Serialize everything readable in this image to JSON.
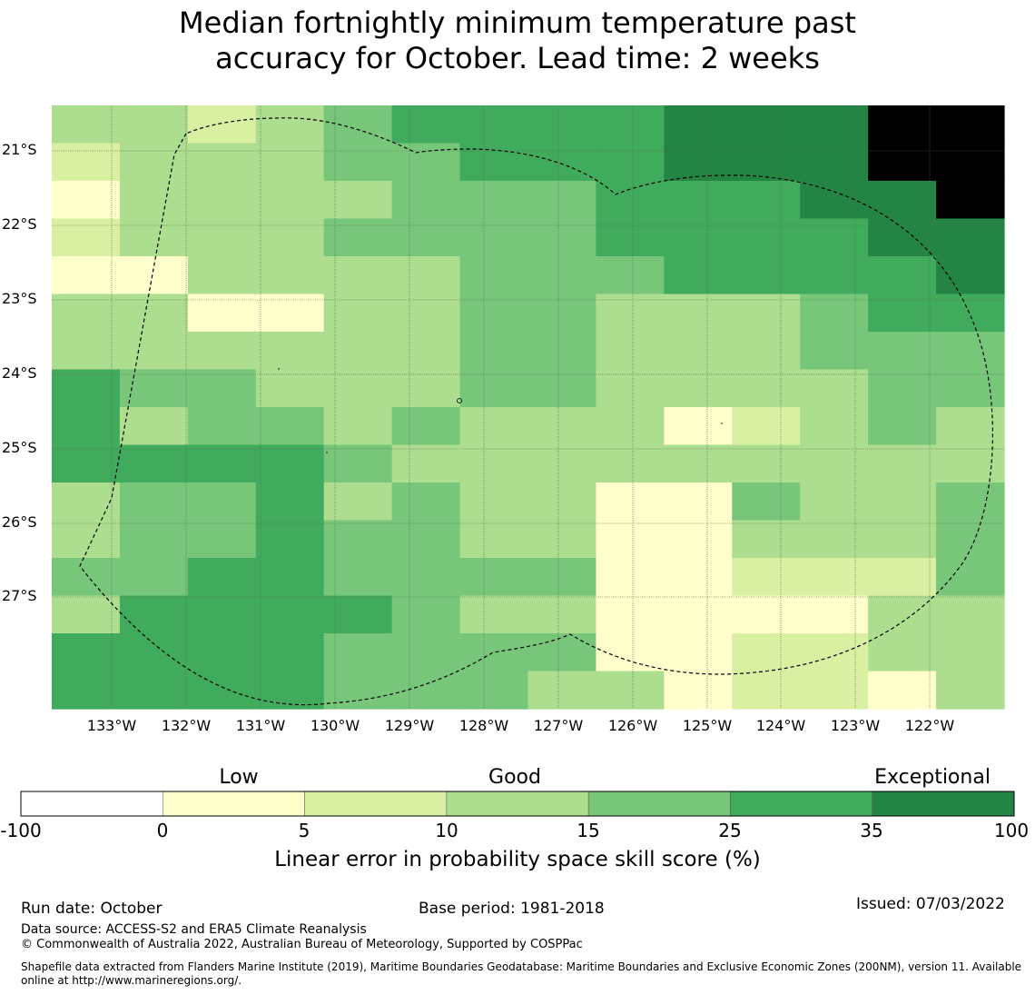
{
  "title": {
    "line1": "Median fortnightly minimum temperature past",
    "line2": "accuracy for October. Lead time: 2 weeks"
  },
  "map": {
    "lat_labels": [
      "21°S",
      "22°S",
      "23°S",
      "24°S",
      "25°S",
      "26°S",
      "27°S"
    ],
    "lon_labels": [
      "133°W",
      "132°W",
      "131°W",
      "130°W",
      "129°W",
      "128°W",
      "127°W",
      "126°W",
      "125°W",
      "124°W",
      "123°W",
      "122°W"
    ],
    "grid_line_color": "#556b55",
    "boundary_color": "#000000",
    "cell_category_rows": [
      "22123444455566",
      "12223344455566",
      "02222333444556",
      "12223333444455",
      "00222233344445",
      "22002233222344",
      "22222233222333",
      "43322233222233",
      "42332322201232",
      "44443222222222",
      "23342322003223",
      "23343322002223",
      "33443333001113",
      "24444322000022",
      "44443333001122",
      "44443332201102"
    ]
  },
  "colorbar": {
    "title": "Linear error in probability space skill score (%)",
    "categories": [
      "Low",
      "Good",
      "Exceptional"
    ],
    "ticks": [
      "-100",
      "0",
      "5",
      "10",
      "15",
      "25",
      "35",
      "100"
    ],
    "colors": [
      "#ffffff",
      "#ffffcc",
      "#d9f0a3",
      "#addd8e",
      "#78c679",
      "#41ab5d",
      "#238443"
    ]
  },
  "footer": {
    "run_date": "Run date: October",
    "base_period": "Base period: 1981-2018",
    "issued": "Issued: 07/03/2022",
    "data_source": "Data source: ACCESS-S2 and ERA5 Climate Reanalysis",
    "copyright": "© Commonwealth of Australia 2022, Australian Bureau of Meteorology, Supported by COSPPac",
    "shapefile": "Shapefile data extracted from Flanders Marine Institute (2019), Maritime Boundaries Geodatabase: Maritime Boundaries and Exclusive Economic Zones (200NM), version 11. Available online at http://www.marineregions.org/."
  }
}
